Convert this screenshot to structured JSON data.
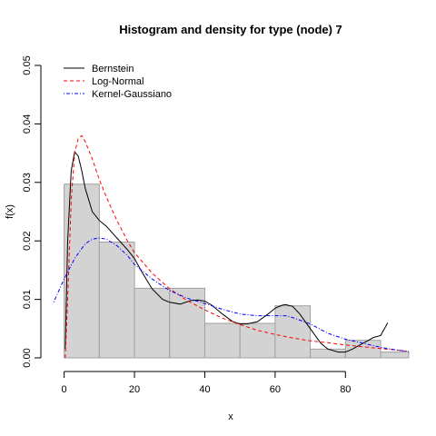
{
  "chart_data": {
    "type": "histogram-density",
    "title": "Histogram and density for type (node) 7",
    "xlabel": "x",
    "ylabel": "f(x)",
    "xlim": [
      -3,
      98
    ],
    "ylim": [
      0,
      0.05
    ],
    "x_ticks": [
      0,
      20,
      40,
      60,
      80
    ],
    "x_tick_labels": [
      "0",
      "20",
      "40",
      "60",
      "80"
    ],
    "y_ticks": [
      0,
      0.01,
      0.02,
      0.03,
      0.04,
      0.05
    ],
    "y_tick_labels": [
      "0.00",
      "0.01",
      "0.02",
      "0.03",
      "0.04",
      "0.05"
    ],
    "histogram": {
      "bins": [
        0,
        10,
        20,
        30,
        40,
        50,
        60,
        70,
        80,
        90,
        98
      ],
      "values": [
        0.0297,
        0.0198,
        0.0119,
        0.0119,
        0.0059,
        0.0059,
        0.0089,
        0.0015,
        0.003,
        0.001
      ],
      "fill": "#d3d3d3",
      "stroke": "#a0a0a0"
    },
    "series": [
      {
        "name": "Bernstein",
        "color": "#000000",
        "dash": "solid",
        "x": [
          0.3,
          1,
          2,
          3,
          4,
          5,
          6,
          8,
          10,
          12,
          15,
          18,
          20,
          22,
          25,
          28,
          30,
          33,
          36,
          38,
          40,
          42,
          45,
          48,
          50,
          52,
          55,
          58,
          60,
          62,
          63,
          65,
          67,
          70,
          73,
          75,
          78,
          80,
          82,
          85,
          88,
          90,
          92
        ],
        "y": [
          0.0015,
          0.02,
          0.032,
          0.0352,
          0.0345,
          0.032,
          0.029,
          0.025,
          0.0235,
          0.0225,
          0.0205,
          0.0185,
          0.017,
          0.0148,
          0.0118,
          0.01,
          0.0095,
          0.0092,
          0.0098,
          0.0099,
          0.0097,
          0.009,
          0.0075,
          0.0062,
          0.0058,
          0.0058,
          0.0062,
          0.0075,
          0.0085,
          0.009,
          0.0091,
          0.0088,
          0.0075,
          0.005,
          0.0025,
          0.0015,
          0.001,
          0.001,
          0.0015,
          0.0025,
          0.0035,
          0.0038,
          0.006
        ]
      },
      {
        "name": "Log-Normal",
        "color": "#ff0000",
        "dash": "dashed",
        "x": [
          0.3,
          1,
          2,
          3,
          4,
          5,
          6,
          8,
          10,
          12,
          15,
          18,
          20,
          25,
          30,
          35,
          40,
          45,
          50,
          55,
          60,
          65,
          70,
          75,
          80,
          85,
          90,
          95,
          98
        ],
        "y": [
          0.0,
          0.01,
          0.027,
          0.035,
          0.0375,
          0.038,
          0.037,
          0.034,
          0.0305,
          0.0275,
          0.0235,
          0.02,
          0.018,
          0.0145,
          0.0118,
          0.0098,
          0.0082,
          0.0068,
          0.0057,
          0.0047,
          0.004,
          0.0034,
          0.0029,
          0.0026,
          0.0022,
          0.0019,
          0.0016,
          0.0013,
          0.0011
        ]
      },
      {
        "name": "Kernel-Gaussiano",
        "color": "#0000ff",
        "dash": "dashdot",
        "x": [
          -3,
          0,
          3,
          6,
          8,
          10,
          12,
          15,
          18,
          20,
          25,
          30,
          35,
          40,
          45,
          50,
          55,
          60,
          63,
          65,
          70,
          75,
          80,
          85,
          90,
          95,
          98
        ],
        "y": [
          0.0095,
          0.0135,
          0.017,
          0.0195,
          0.0203,
          0.0205,
          0.0203,
          0.0192,
          0.0175,
          0.016,
          0.0135,
          0.0115,
          0.0102,
          0.0093,
          0.0083,
          0.0075,
          0.0072,
          0.0072,
          0.0072,
          0.0069,
          0.0058,
          0.0042,
          0.0032,
          0.0025,
          0.0018,
          0.0013,
          0.0011
        ]
      }
    ],
    "legend": {
      "position": "top-left",
      "entries": [
        "Bernstein",
        "Log-Normal",
        "Kernel-Gaussiano"
      ]
    }
  }
}
